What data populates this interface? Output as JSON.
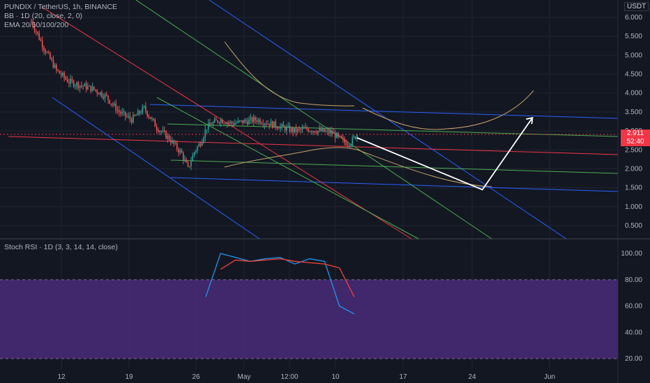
{
  "header": {
    "line1": "PUNDIX / TetherUS, 1h, BINANCE",
    "line2": "BB · 1D (20, close, 2, 0)",
    "line3": "EMA 20/50/100/200",
    "currency": "USDT"
  },
  "rsi_panel": {
    "title": "Stoch RSI · 1D (3, 3, 14, 14, close)"
  },
  "last_price": {
    "value": "2.911",
    "countdown": "52:40"
  },
  "colors": {
    "background": "#131722",
    "grid": "#1f2430",
    "up": "#26a69a",
    "down": "#ef5350",
    "pitchfork_blue": "#2962ff",
    "pitchfork_red": "#f23645",
    "pitchfork_green": "#4caf50",
    "ema_orange": "#c9a46a",
    "rsi_k": "#2196f3",
    "rsi_d": "#f44336",
    "rsi_band": "#4a2a78"
  },
  "chart_data": [
    {
      "type": "candlestick",
      "title": "PUNDIX / TetherUS, 1h, BINANCE",
      "x_ticks": [
        "12",
        "19",
        "26",
        "May",
        "12:00",
        "10",
        "17",
        "24",
        "Jun"
      ],
      "y_ticks": [
        "6.000",
        "5.500",
        "5.000",
        "4.500",
        "4.000",
        "3.500",
        "3.000",
        "2.500",
        "2.000",
        "1.500",
        "1.000",
        "0.500"
      ],
      "ylim": [
        0.2,
        6.3
      ],
      "last_price": 2.911,
      "price_path": [
        [
          0,
          5.9
        ],
        [
          2,
          5.2
        ],
        [
          4,
          4.6
        ],
        [
          6,
          4.3
        ],
        [
          8,
          4.2
        ],
        [
          10,
          4.1
        ],
        [
          12,
          3.9
        ],
        [
          14,
          3.5
        ],
        [
          16,
          3.3
        ],
        [
          18,
          3.6
        ],
        [
          20,
          3.1
        ],
        [
          22,
          2.8
        ],
        [
          24,
          2.4
        ],
        [
          25,
          2.0
        ],
        [
          26,
          2.45
        ],
        [
          27,
          2.7
        ],
        [
          28,
          3.1
        ],
        [
          30,
          3.3
        ],
        [
          32,
          3.2
        ],
        [
          34,
          3.25
        ],
        [
          36,
          3.3
        ],
        [
          38,
          3.2
        ],
        [
          40,
          3.1
        ],
        [
          42,
          3.0
        ],
        [
          44,
          3.05
        ],
        [
          46,
          3.0
        ],
        [
          48,
          2.95
        ],
        [
          50,
          2.7
        ],
        [
          51,
          2.7
        ],
        [
          52,
          2.91
        ]
      ],
      "projection": [
        [
          52,
          2.82
        ],
        [
          72,
          1.45
        ],
        [
          80,
          3.35
        ]
      ],
      "grid": true
    },
    {
      "type": "line",
      "title": "Stoch RSI · 1D (3, 3, 14, 14, close)",
      "ylim": [
        0,
        110
      ],
      "y_ticks": [
        "100.00",
        "80.00",
        "60.00",
        "40.00",
        "20.00"
      ],
      "band": [
        20,
        80
      ],
      "series": [
        {
          "name": "K",
          "x": [
            0,
            1,
            2,
            3,
            4,
            5,
            6,
            7,
            8,
            9,
            10
          ],
          "values": [
            67,
            100,
            97,
            94,
            96,
            97,
            92,
            96,
            94,
            60,
            54
          ]
        },
        {
          "name": "D",
          "x": [
            1,
            2,
            3,
            4,
            5,
            6,
            7,
            8,
            9,
            10
          ],
          "values": [
            88,
            95,
            94,
            95,
            96,
            94,
            93,
            92,
            89,
            67
          ]
        }
      ]
    }
  ]
}
